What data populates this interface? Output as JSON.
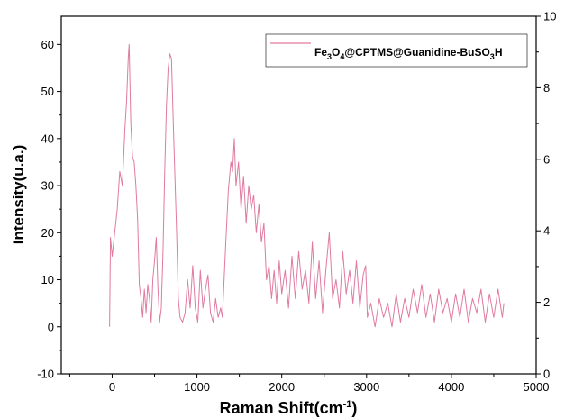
{
  "chart_data": {
    "type": "line",
    "xlabel": "Raman Shift(cm",
    "xlabel_sup": "-1",
    "xlabel_end": ")",
    "ylabel": "Intensity(u.a.",
    "ylabel_end": ")",
    "xlim": [
      -600,
      5000
    ],
    "ylim": [
      -10,
      66
    ],
    "y2lim": [
      0,
      10
    ],
    "x_ticks": [
      0,
      1000,
      2000,
      3000,
      4000,
      5000
    ],
    "y_ticks": [
      -10,
      0,
      10,
      20,
      30,
      40,
      50,
      60
    ],
    "y2_ticks": [
      0,
      2,
      4,
      6,
      8,
      10
    ],
    "grid": false,
    "legend": {
      "position": "top-right",
      "parts": [
        {
          "t": "Fe"
        },
        {
          "t": "3",
          "sub": true
        },
        {
          "t": "O"
        },
        {
          "t": "4",
          "sub": true
        },
        {
          "t": "@CPTMS@Guanidine-BuSO"
        },
        {
          "t": "3",
          "sub": true
        },
        {
          "t": "H"
        }
      ]
    },
    "series": [
      {
        "name": "Fe3O4@CPTMS@Guanidine-BuSO3H",
        "color": "#e07aa0",
        "points": [
          [
            -30,
            0
          ],
          [
            -20,
            19
          ],
          [
            0,
            15
          ],
          [
            30,
            20
          ],
          [
            60,
            25
          ],
          [
            90,
            33
          ],
          [
            120,
            30
          ],
          [
            150,
            42
          ],
          [
            170,
            48
          ],
          [
            190,
            57
          ],
          [
            200,
            60
          ],
          [
            220,
            43
          ],
          [
            240,
            36
          ],
          [
            260,
            35
          ],
          [
            280,
            30
          ],
          [
            300,
            23
          ],
          [
            320,
            9
          ],
          [
            340,
            6
          ],
          [
            360,
            2
          ],
          [
            380,
            8
          ],
          [
            400,
            3
          ],
          [
            420,
            9
          ],
          [
            440,
            6
          ],
          [
            460,
            1
          ],
          [
            480,
            10
          ],
          [
            500,
            14
          ],
          [
            520,
            19
          ],
          [
            540,
            8
          ],
          [
            560,
            1
          ],
          [
            580,
            4
          ],
          [
            600,
            16
          ],
          [
            620,
            33
          ],
          [
            640,
            47
          ],
          [
            660,
            55
          ],
          [
            680,
            58
          ],
          [
            700,
            57
          ],
          [
            720,
            44
          ],
          [
            740,
            32
          ],
          [
            760,
            20
          ],
          [
            780,
            6
          ],
          [
            800,
            2
          ],
          [
            830,
            1
          ],
          [
            860,
            3
          ],
          [
            890,
            10
          ],
          [
            920,
            4
          ],
          [
            950,
            13
          ],
          [
            980,
            4
          ],
          [
            1010,
            1
          ],
          [
            1040,
            12
          ],
          [
            1070,
            4
          ],
          [
            1100,
            8
          ],
          [
            1130,
            11
          ],
          [
            1160,
            3
          ],
          [
            1190,
            1
          ],
          [
            1220,
            6
          ],
          [
            1250,
            2
          ],
          [
            1280,
            4
          ],
          [
            1300,
            2
          ],
          [
            1320,
            10
          ],
          [
            1340,
            18
          ],
          [
            1370,
            29
          ],
          [
            1400,
            35
          ],
          [
            1420,
            33
          ],
          [
            1440,
            40
          ],
          [
            1460,
            30
          ],
          [
            1490,
            35
          ],
          [
            1520,
            25
          ],
          [
            1550,
            32
          ],
          [
            1580,
            22
          ],
          [
            1610,
            30
          ],
          [
            1640,
            25
          ],
          [
            1670,
            28
          ],
          [
            1700,
            20
          ],
          [
            1730,
            26
          ],
          [
            1760,
            18
          ],
          [
            1790,
            22
          ],
          [
            1820,
            10
          ],
          [
            1850,
            13
          ],
          [
            1880,
            6
          ],
          [
            1910,
            12
          ],
          [
            1940,
            5
          ],
          [
            1970,
            14
          ],
          [
            2000,
            7
          ],
          [
            2040,
            12
          ],
          [
            2080,
            4
          ],
          [
            2120,
            15
          ],
          [
            2160,
            6
          ],
          [
            2200,
            16
          ],
          [
            2240,
            8
          ],
          [
            2280,
            12
          ],
          [
            2320,
            5
          ],
          [
            2360,
            18
          ],
          [
            2400,
            6
          ],
          [
            2440,
            14
          ],
          [
            2480,
            3
          ],
          [
            2520,
            12
          ],
          [
            2560,
            20
          ],
          [
            2600,
            6
          ],
          [
            2640,
            10
          ],
          [
            2680,
            4
          ],
          [
            2720,
            16
          ],
          [
            2760,
            7
          ],
          [
            2800,
            12
          ],
          [
            2840,
            5
          ],
          [
            2880,
            14
          ],
          [
            2920,
            4
          ],
          [
            2960,
            11
          ],
          [
            2990,
            13
          ],
          [
            3010,
            2
          ],
          [
            3050,
            5
          ],
          [
            3100,
            0
          ],
          [
            3150,
            6
          ],
          [
            3200,
            2
          ],
          [
            3250,
            5
          ],
          [
            3300,
            0
          ],
          [
            3350,
            7
          ],
          [
            3400,
            1
          ],
          [
            3450,
            6
          ],
          [
            3500,
            2
          ],
          [
            3550,
            8
          ],
          [
            3600,
            3
          ],
          [
            3650,
            9
          ],
          [
            3700,
            2
          ],
          [
            3750,
            7
          ],
          [
            3800,
            1
          ],
          [
            3850,
            8
          ],
          [
            3900,
            3
          ],
          [
            3950,
            6
          ],
          [
            4000,
            1
          ],
          [
            4050,
            7
          ],
          [
            4100,
            2
          ],
          [
            4150,
            8
          ],
          [
            4200,
            1
          ],
          [
            4250,
            6
          ],
          [
            4300,
            3
          ],
          [
            4350,
            8
          ],
          [
            4400,
            1
          ],
          [
            4450,
            7
          ],
          [
            4500,
            2
          ],
          [
            4550,
            8
          ],
          [
            4600,
            2
          ],
          [
            4620,
            5
          ]
        ]
      }
    ]
  }
}
